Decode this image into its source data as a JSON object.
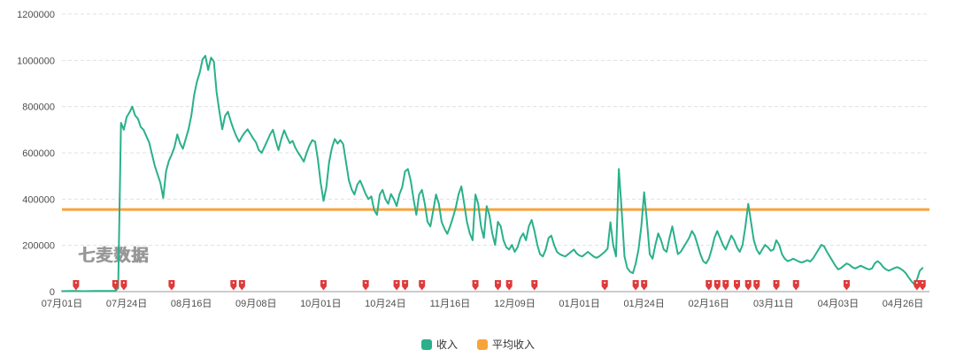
{
  "watermark": "七麦数据",
  "colors": {
    "series": "#2ab08a",
    "average": "#f8a33a",
    "marker": "#e03a3a",
    "grid": "#e0e0e0",
    "axis": "#999999",
    "tick_text": "#4d4d4d"
  },
  "legend": [
    {
      "label": "收入",
      "color": "#2ab08a"
    },
    {
      "label": "平均收入",
      "color": "#f8a33a"
    }
  ],
  "chart_data": {
    "type": "line",
    "title": "",
    "xlabel": "",
    "ylabel": "",
    "grid": "dashed-horizontal",
    "legend_position": "bottom-center",
    "ylim": [
      0,
      1200000
    ],
    "y_ticks": [
      0,
      200000,
      400000,
      600000,
      800000,
      1000000,
      1200000
    ],
    "x_tick_days": [
      0,
      23,
      46,
      69,
      92,
      115,
      138,
      161,
      184,
      207,
      230,
      253,
      276,
      299
    ],
    "x_tick_labels": [
      "07月01日",
      "07月24日",
      "08月16日",
      "09月08日",
      "10月01日",
      "10月24日",
      "11月16日",
      "12月09日",
      "01月01日",
      "01月24日",
      "02月16日",
      "03月11日",
      "04月03日",
      "04月26日"
    ],
    "average_line": {
      "name": "平均收入",
      "value": 355000
    },
    "marker_days": [
      5,
      19,
      22,
      39,
      61,
      64,
      93,
      108,
      119,
      122,
      128,
      147,
      155,
      159,
      168,
      193,
      204,
      207,
      230,
      233,
      236,
      240,
      244,
      247,
      254,
      261,
      279,
      304,
      306
    ],
    "series": [
      {
        "name": "收入",
        "points": [
          [
            0,
            2000
          ],
          [
            4,
            2500
          ],
          [
            8,
            2000
          ],
          [
            12,
            2500
          ],
          [
            16,
            2500
          ],
          [
            19,
            3000
          ],
          [
            20,
            15000
          ],
          [
            21,
            730000
          ],
          [
            22,
            700000
          ],
          [
            23,
            755000
          ],
          [
            24,
            775000
          ],
          [
            25,
            800000
          ],
          [
            26,
            762000
          ],
          [
            27,
            748000
          ],
          [
            28,
            712000
          ],
          [
            29,
            700000
          ],
          [
            31,
            645000
          ],
          [
            33,
            545000
          ],
          [
            35,
            470000
          ],
          [
            36,
            405000
          ],
          [
            37,
            520000
          ],
          [
            38,
            565000
          ],
          [
            39,
            592000
          ],
          [
            40,
            625000
          ],
          [
            41,
            680000
          ],
          [
            42,
            642000
          ],
          [
            43,
            618000
          ],
          [
            44,
            660000
          ],
          [
            45,
            702000
          ],
          [
            46,
            762000
          ],
          [
            47,
            850000
          ],
          [
            48,
            908000
          ],
          [
            49,
            948000
          ],
          [
            50,
            1005000
          ],
          [
            51,
            1020000
          ],
          [
            52,
            958000
          ],
          [
            53,
            1012000
          ],
          [
            54,
            995000
          ],
          [
            55,
            862000
          ],
          [
            56,
            778000
          ],
          [
            57,
            702000
          ],
          [
            58,
            760000
          ],
          [
            59,
            778000
          ],
          [
            60,
            738000
          ],
          [
            61,
            702000
          ],
          [
            62,
            672000
          ],
          [
            63,
            648000
          ],
          [
            64,
            670000
          ],
          [
            65,
            688000
          ],
          [
            66,
            702000
          ],
          [
            67,
            682000
          ],
          [
            68,
            662000
          ],
          [
            69,
            645000
          ],
          [
            70,
            612000
          ],
          [
            71,
            600000
          ],
          [
            72,
            626000
          ],
          [
            73,
            652000
          ],
          [
            74,
            680000
          ],
          [
            75,
            700000
          ],
          [
            76,
            652000
          ],
          [
            77,
            612000
          ],
          [
            78,
            660000
          ],
          [
            79,
            698000
          ],
          [
            80,
            668000
          ],
          [
            81,
            642000
          ],
          [
            82,
            652000
          ],
          [
            83,
            622000
          ],
          [
            84,
            600000
          ],
          [
            85,
            582000
          ],
          [
            86,
            562000
          ],
          [
            87,
            600000
          ],
          [
            88,
            632000
          ],
          [
            89,
            655000
          ],
          [
            90,
            648000
          ],
          [
            91,
            572000
          ],
          [
            92,
            470000
          ],
          [
            93,
            392000
          ],
          [
            94,
            452000
          ],
          [
            95,
            560000
          ],
          [
            96,
            622000
          ],
          [
            97,
            660000
          ],
          [
            98,
            640000
          ],
          [
            99,
            655000
          ],
          [
            100,
            638000
          ],
          [
            101,
            560000
          ],
          [
            102,
            482000
          ],
          [
            103,
            442000
          ],
          [
            104,
            420000
          ],
          [
            105,
            462000
          ],
          [
            106,
            480000
          ],
          [
            107,
            452000
          ],
          [
            108,
            422000
          ],
          [
            109,
            400000
          ],
          [
            110,
            412000
          ],
          [
            111,
            352000
          ],
          [
            112,
            332000
          ],
          [
            113,
            420000
          ],
          [
            114,
            440000
          ],
          [
            115,
            400000
          ],
          [
            116,
            380000
          ],
          [
            117,
            422000
          ],
          [
            118,
            400000
          ],
          [
            119,
            370000
          ],
          [
            120,
            422000
          ],
          [
            121,
            452000
          ],
          [
            122,
            520000
          ],
          [
            123,
            530000
          ],
          [
            124,
            480000
          ],
          [
            125,
            400000
          ],
          [
            126,
            332000
          ],
          [
            127,
            420000
          ],
          [
            128,
            440000
          ],
          [
            129,
            380000
          ],
          [
            130,
            302000
          ],
          [
            131,
            282000
          ],
          [
            132,
            350000
          ],
          [
            133,
            420000
          ],
          [
            134,
            380000
          ],
          [
            135,
            302000
          ],
          [
            136,
            272000
          ],
          [
            137,
            250000
          ],
          [
            138,
            282000
          ],
          [
            139,
            320000
          ],
          [
            140,
            362000
          ],
          [
            141,
            420000
          ],
          [
            142,
            455000
          ],
          [
            143,
            382000
          ],
          [
            144,
            302000
          ],
          [
            145,
            252000
          ],
          [
            146,
            222000
          ],
          [
            147,
            420000
          ],
          [
            148,
            380000
          ],
          [
            149,
            282000
          ],
          [
            150,
            232000
          ],
          [
            151,
            370000
          ],
          [
            152,
            330000
          ],
          [
            153,
            252000
          ],
          [
            154,
            202000
          ],
          [
            155,
            302000
          ],
          [
            156,
            282000
          ],
          [
            157,
            222000
          ],
          [
            158,
            192000
          ],
          [
            159,
            182000
          ],
          [
            160,
            202000
          ],
          [
            161,
            172000
          ],
          [
            162,
            192000
          ],
          [
            163,
            232000
          ],
          [
            164,
            252000
          ],
          [
            165,
            222000
          ],
          [
            166,
            282000
          ],
          [
            167,
            310000
          ],
          [
            168,
            262000
          ],
          [
            169,
            202000
          ],
          [
            170,
            162000
          ],
          [
            171,
            152000
          ],
          [
            172,
            182000
          ],
          [
            173,
            232000
          ],
          [
            174,
            242000
          ],
          [
            175,
            202000
          ],
          [
            176,
            172000
          ],
          [
            177,
            162000
          ],
          [
            178,
            156000
          ],
          [
            179,
            152000
          ],
          [
            180,
            162000
          ],
          [
            181,
            172000
          ],
          [
            182,
            182000
          ],
          [
            183,
            166000
          ],
          [
            184,
            156000
          ],
          [
            185,
            152000
          ],
          [
            186,
            162000
          ],
          [
            187,
            172000
          ],
          [
            188,
            162000
          ],
          [
            189,
            152000
          ],
          [
            190,
            146000
          ],
          [
            191,
            152000
          ],
          [
            192,
            162000
          ],
          [
            193,
            172000
          ],
          [
            194,
            186000
          ],
          [
            195,
            300000
          ],
          [
            196,
            202000
          ],
          [
            197,
            152000
          ],
          [
            198,
            530000
          ],
          [
            199,
            352000
          ],
          [
            200,
            152000
          ],
          [
            201,
            102000
          ],
          [
            202,
            86000
          ],
          [
            203,
            80000
          ],
          [
            204,
            122000
          ],
          [
            205,
            182000
          ],
          [
            206,
            282000
          ],
          [
            207,
            430000
          ],
          [
            208,
            302000
          ],
          [
            209,
            162000
          ],
          [
            210,
            142000
          ],
          [
            211,
            202000
          ],
          [
            212,
            252000
          ],
          [
            213,
            222000
          ],
          [
            214,
            182000
          ],
          [
            215,
            172000
          ],
          [
            216,
            232000
          ],
          [
            217,
            282000
          ],
          [
            218,
            222000
          ],
          [
            219,
            162000
          ],
          [
            220,
            172000
          ],
          [
            221,
            192000
          ],
          [
            222,
            212000
          ],
          [
            223,
            232000
          ],
          [
            224,
            262000
          ],
          [
            225,
            242000
          ],
          [
            226,
            202000
          ],
          [
            227,
            162000
          ],
          [
            228,
            132000
          ],
          [
            229,
            122000
          ],
          [
            230,
            142000
          ],
          [
            231,
            182000
          ],
          [
            232,
            232000
          ],
          [
            233,
            262000
          ],
          [
            234,
            232000
          ],
          [
            235,
            202000
          ],
          [
            236,
            182000
          ],
          [
            237,
            212000
          ],
          [
            238,
            242000
          ],
          [
            239,
            222000
          ],
          [
            240,
            192000
          ],
          [
            241,
            172000
          ],
          [
            242,
            202000
          ],
          [
            243,
            282000
          ],
          [
            244,
            380000
          ],
          [
            245,
            302000
          ],
          [
            246,
            222000
          ],
          [
            247,
            182000
          ],
          [
            248,
            162000
          ],
          [
            249,
            182000
          ],
          [
            250,
            202000
          ],
          [
            251,
            192000
          ],
          [
            252,
            176000
          ],
          [
            253,
            182000
          ],
          [
            254,
            222000
          ],
          [
            255,
            202000
          ],
          [
            256,
            162000
          ],
          [
            257,
            142000
          ],
          [
            258,
            132000
          ],
          [
            259,
            136000
          ],
          [
            260,
            142000
          ],
          [
            261,
            136000
          ],
          [
            262,
            130000
          ],
          [
            263,
            126000
          ],
          [
            264,
            130000
          ],
          [
            265,
            136000
          ],
          [
            266,
            130000
          ],
          [
            267,
            142000
          ],
          [
            268,
            162000
          ],
          [
            269,
            182000
          ],
          [
            270,
            202000
          ],
          [
            271,
            196000
          ],
          [
            272,
            172000
          ],
          [
            273,
            152000
          ],
          [
            274,
            132000
          ],
          [
            275,
            112000
          ],
          [
            276,
            96000
          ],
          [
            277,
            102000
          ],
          [
            278,
            112000
          ],
          [
            279,
            122000
          ],
          [
            280,
            116000
          ],
          [
            281,
            106000
          ],
          [
            282,
            100000
          ],
          [
            283,
            106000
          ],
          [
            284,
            112000
          ],
          [
            285,
            106000
          ],
          [
            286,
            100000
          ],
          [
            287,
            96000
          ],
          [
            288,
            100000
          ],
          [
            289,
            122000
          ],
          [
            290,
            132000
          ],
          [
            291,
            122000
          ],
          [
            292,
            106000
          ],
          [
            293,
            96000
          ],
          [
            294,
            90000
          ],
          [
            295,
            96000
          ],
          [
            296,
            102000
          ],
          [
            297,
            106000
          ],
          [
            298,
            100000
          ],
          [
            299,
            92000
          ],
          [
            300,
            80000
          ],
          [
            301,
            62000
          ],
          [
            302,
            46000
          ],
          [
            303,
            32000
          ],
          [
            304,
            52000
          ],
          [
            305,
            90000
          ],
          [
            306,
            102000
          ]
        ]
      }
    ]
  }
}
